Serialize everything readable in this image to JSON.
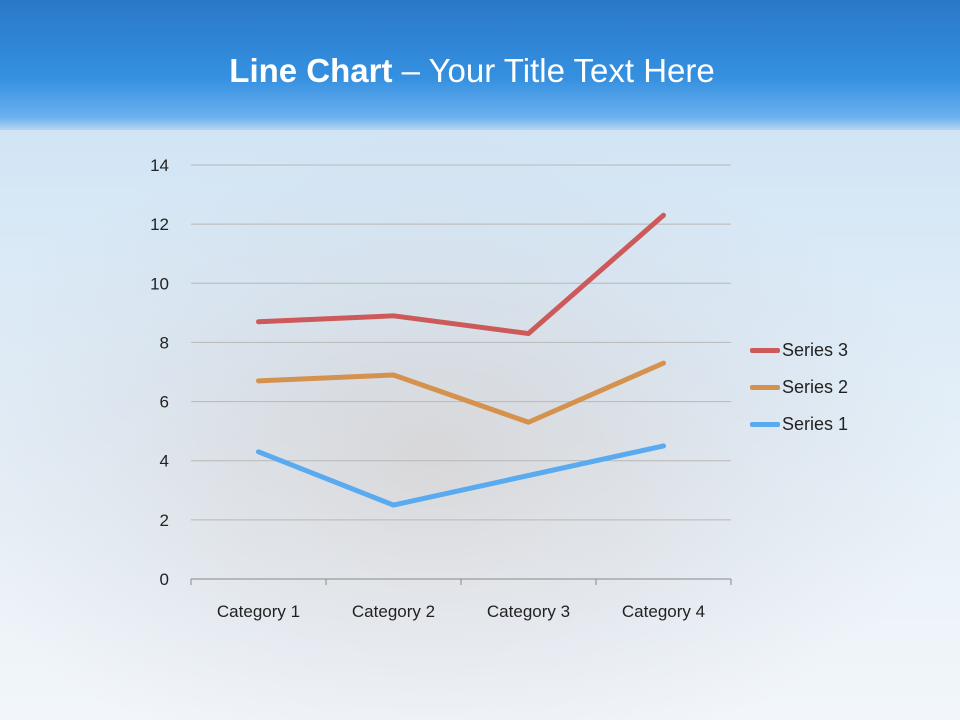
{
  "slide": {
    "title_bold": "Line Chart",
    "title_rest": " – Your Title Text Here"
  },
  "chart_data": {
    "type": "line",
    "title": "",
    "xlabel": "",
    "ylabel": "",
    "categories": [
      "Category 1",
      "Category 2",
      "Category 3",
      "Category 4"
    ],
    "ylim": [
      0,
      14
    ],
    "yticks": [
      "0",
      "2",
      "4",
      "6",
      "8",
      "10",
      "12",
      "14"
    ],
    "grid": true,
    "legend_position": "right",
    "series": [
      {
        "name": "Series 1",
        "values": [
          4.3,
          2.5,
          3.5,
          4.5
        ],
        "color": "#5aaaf0"
      },
      {
        "name": "Series 2",
        "values": [
          6.7,
          6.9,
          5.3,
          7.3
        ],
        "color": "#d4924e"
      },
      {
        "name": "Series 3",
        "values": [
          8.7,
          8.9,
          8.3,
          12.3
        ],
        "color": "#cc5a5a"
      }
    ]
  }
}
